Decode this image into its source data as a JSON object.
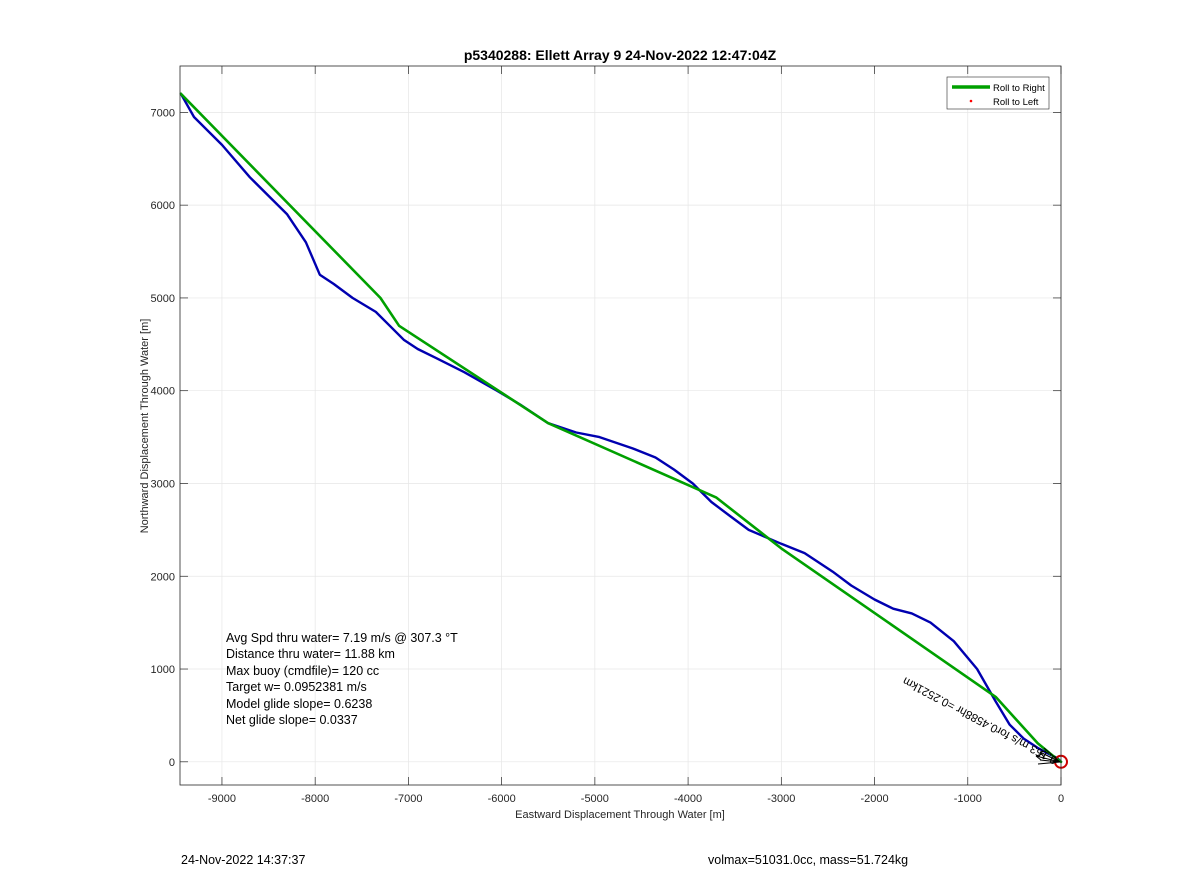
{
  "chart_data": {
    "type": "line",
    "title": "p5340288: Ellett Array 9 24-Nov-2022 12:47:04Z",
    "xlabel": "Eastward Displacement Through Water [m]",
    "ylabel": "Northward Displacement Through Water [m]",
    "xlim": [
      -9450,
      0
    ],
    "ylim": [
      -250,
      7500
    ],
    "xticks": [
      -9000,
      -8000,
      -7000,
      -6000,
      -5000,
      -4000,
      -3000,
      -2000,
      -1000,
      0
    ],
    "yticks": [
      0,
      1000,
      2000,
      3000,
      4000,
      5000,
      6000,
      7000
    ],
    "grid": true,
    "legend_position": "top-right",
    "legend": [
      "Roll to Right",
      "Roll to Left"
    ],
    "series": [
      {
        "name": "Roll to Right",
        "color": "#00a000",
        "x": [
          -9440,
          -7300,
          -7100,
          -5500,
          -3700,
          -3000,
          -700,
          -250,
          -80,
          0
        ],
        "y": [
          7200,
          5000,
          4700,
          3650,
          2850,
          2300,
          700,
          200,
          60,
          0
        ]
      },
      {
        "name": "Roll to Left",
        "color": "#ff0000",
        "x": [],
        "y": []
      },
      {
        "name": "",
        "color": "#0000b0",
        "x": [
          -9440,
          -9300,
          -9000,
          -8700,
          -8300,
          -8100,
          -7950,
          -7800,
          -7600,
          -7350,
          -7200,
          -7050,
          -6900,
          -6700,
          -6400,
          -6050,
          -5800,
          -5500,
          -5200,
          -4950,
          -4600,
          -4350,
          -4150,
          -3950,
          -3750,
          -3550,
          -3350,
          -3000,
          -2750,
          -2450,
          -2250,
          -2000,
          -1800,
          -1600,
          -1400,
          -1150,
          -900,
          -700,
          -550,
          -400,
          -250,
          -120,
          -40,
          0
        ],
        "y": [
          7200,
          6950,
          6650,
          6300,
          5900,
          5600,
          5250,
          5150,
          5000,
          4850,
          4700,
          4550,
          4450,
          4350,
          4200,
          4000,
          3850,
          3650,
          3550,
          3500,
          3380,
          3280,
          3150,
          3000,
          2800,
          2650,
          2500,
          2350,
          2250,
          2050,
          1900,
          1750,
          1650,
          1600,
          1500,
          1300,
          1000,
          650,
          400,
          250,
          150,
          80,
          40,
          0
        ]
      }
    ],
    "end_marker": {
      "x": 0,
      "y": 0,
      "color": "#cc0000"
    }
  },
  "annotations": {
    "stats": [
      "Avg Spd thru water=  7.19 m/s @ 307.3 °T",
      "Distance thru water= 11.88 km",
      "Max buoy (cmdfile)= 120 cc",
      "Target w= 0.0952381 m/s",
      "Model glide slope= 0.6238",
      "Net glide slope= 0.0337"
    ],
    "current_label": "0.153 m/s for0.4588hr =0.2521km"
  },
  "footer": {
    "left": "24-Nov-2022 14:37:37",
    "right": "volmax=51031.0cc, mass=51.724kg"
  }
}
